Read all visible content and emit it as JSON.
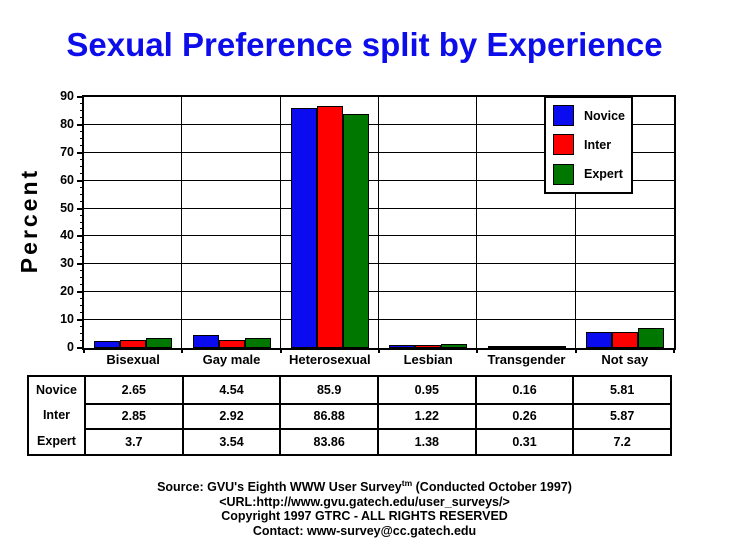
{
  "page": {
    "title": "Sexual Preference split by Experience",
    "title_color": "#0D0DEB",
    "background": "#FFFFFF"
  },
  "chart_data": {
    "type": "bar",
    "title": "Sexual Preference split by Experience",
    "categories": [
      "Bisexual",
      "Gay male",
      "Heterosexual",
      "Lesbian",
      "Transgender",
      "Not say"
    ],
    "series": [
      {
        "name": "Novice",
        "color": "#0B0BF0",
        "values": [
          2.65,
          4.54,
          85.9,
          0.95,
          0.16,
          5.81
        ]
      },
      {
        "name": "Inter",
        "color": "#FF0000",
        "values": [
          2.85,
          2.92,
          86.88,
          1.22,
          0.26,
          5.87
        ]
      },
      {
        "name": "Expert",
        "color": "#007800",
        "values": [
          3.7,
          3.54,
          83.86,
          1.38,
          0.31,
          7.2
        ]
      }
    ],
    "xlabel": "",
    "ylabel": "Percent",
    "ylim": [
      0,
      90
    ],
    "ytick_step": 10,
    "yminor_step": 2.5,
    "grid": true,
    "legend": {
      "position": "top-right",
      "entries": [
        "Novice",
        "Inter",
        "Expert"
      ]
    }
  },
  "table": {
    "row_headers": [
      "Novice",
      "Inter",
      "Expert"
    ]
  },
  "footer": {
    "line1_prefix": "Source: GVU's Eighth WWW User Survey",
    "line1_sup": "tm",
    "line1_suffix": " (Conducted October 1997)",
    "line2": "<URL:http://www.gvu.gatech.edu/user_surveys/>",
    "line3": "Copyright 1997 GTRC - ALL RIGHTS RESERVED",
    "line4": "Contact: www-survey@cc.gatech.edu"
  }
}
